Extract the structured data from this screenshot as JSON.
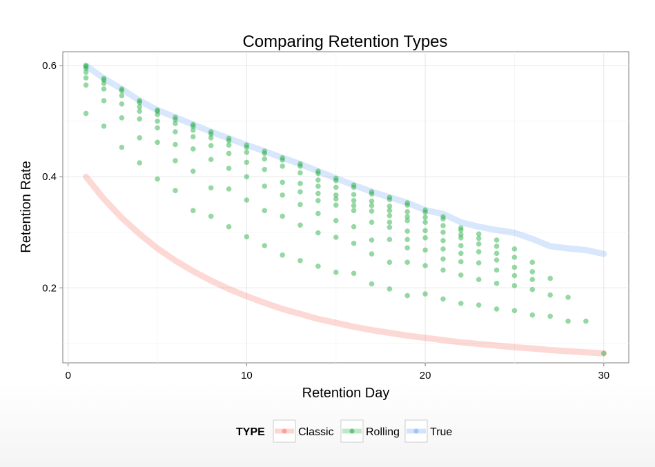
{
  "chart_data": {
    "type": "scatter",
    "title": "Comparing Retention Types",
    "xlabel": "Retention Day",
    "ylabel": "Retention Rate",
    "xlim": [
      -0.3,
      31.4
    ],
    "ylim": [
      0.065,
      0.625
    ],
    "x_ticks": [
      0,
      10,
      20,
      30
    ],
    "y_ticks": [
      0.2,
      0.4,
      0.6
    ],
    "x_tick_labels": [
      "0",
      "10",
      "20",
      "30"
    ],
    "y_tick_labels": [
      "0.2",
      "0.4",
      "0.6"
    ],
    "grid": true,
    "legend": {
      "title": "TYPE",
      "position": "bottom",
      "entries": [
        "Classic",
        "Rolling",
        "True"
      ]
    },
    "colors": {
      "Classic": "#F8766D",
      "Rolling": "#2DB24A",
      "True": "#7FAEF5"
    },
    "lines": [
      {
        "name": "True",
        "x": [
          1,
          2,
          3,
          4,
          5,
          6,
          7,
          8,
          9,
          10,
          11,
          12,
          13,
          14,
          15,
          16,
          17,
          18,
          19,
          20,
          21,
          22,
          23,
          24,
          25,
          26,
          27,
          28,
          29,
          30
        ],
        "y": [
          0.6,
          0.577,
          0.558,
          0.537,
          0.52,
          0.507,
          0.494,
          0.481,
          0.469,
          0.457,
          0.446,
          0.434,
          0.423,
          0.41,
          0.397,
          0.385,
          0.373,
          0.363,
          0.353,
          0.34,
          0.333,
          0.318,
          0.31,
          0.304,
          0.299,
          0.288,
          0.275,
          0.271,
          0.268,
          0.261
        ]
      },
      {
        "name": "Classic",
        "x": [
          1,
          2,
          3,
          4,
          5,
          6,
          7,
          8,
          9,
          10,
          11,
          12,
          13,
          14,
          15,
          16,
          17,
          18,
          19,
          20,
          21,
          22,
          23,
          24,
          25,
          26,
          27,
          28,
          29,
          30
        ],
        "y": [
          0.4,
          0.36,
          0.326,
          0.297,
          0.271,
          0.249,
          0.23,
          0.213,
          0.198,
          0.185,
          0.173,
          0.162,
          0.153,
          0.144,
          0.137,
          0.13,
          0.124,
          0.119,
          0.114,
          0.11,
          0.106,
          0.102,
          0.099,
          0.096,
          0.093,
          0.091,
          0.088,
          0.086,
          0.084,
          0.082
        ]
      }
    ],
    "rolling_points": {
      "name": "Rolling",
      "columns": [
        {
          "x": 1,
          "y": [
            0.6,
            0.598,
            0.595,
            0.588,
            0.578,
            0.565,
            0.514
          ]
        },
        {
          "x": 2,
          "y": [
            0.577,
            0.574,
            0.568,
            0.558,
            0.537,
            0.491
          ]
        },
        {
          "x": 3,
          "y": [
            0.558,
            0.555,
            0.546,
            0.531,
            0.506,
            0.453
          ]
        },
        {
          "x": 4,
          "y": [
            0.537,
            0.534,
            0.526,
            0.518,
            0.504,
            0.47,
            0.425
          ]
        },
        {
          "x": 5,
          "y": [
            0.52,
            0.518,
            0.512,
            0.5,
            0.488,
            0.462,
            0.396
          ]
        },
        {
          "x": 6,
          "y": [
            0.507,
            0.503,
            0.496,
            0.481,
            0.458,
            0.429,
            0.375
          ]
        },
        {
          "x": 7,
          "y": [
            0.494,
            0.491,
            0.484,
            0.472,
            0.45,
            0.41,
            0.339
          ]
        },
        {
          "x": 8,
          "y": [
            0.481,
            0.477,
            0.47,
            0.456,
            0.431,
            0.38,
            0.329
          ]
        },
        {
          "x": 9,
          "y": [
            0.469,
            0.465,
            0.457,
            0.442,
            0.415,
            0.378,
            0.31
          ]
        },
        {
          "x": 10,
          "y": [
            0.457,
            0.453,
            0.444,
            0.426,
            0.4,
            0.358,
            0.292
          ]
        },
        {
          "x": 11,
          "y": [
            0.446,
            0.442,
            0.432,
            0.413,
            0.383,
            0.339,
            0.276
          ]
        },
        {
          "x": 12,
          "y": [
            0.434,
            0.43,
            0.419,
            0.39,
            0.367,
            0.329,
            0.259
          ]
        },
        {
          "x": 13,
          "y": [
            0.423,
            0.419,
            0.407,
            0.388,
            0.373,
            0.35,
            0.313,
            0.249
          ]
        },
        {
          "x": 14,
          "y": [
            0.41,
            0.406,
            0.394,
            0.383,
            0.37,
            0.357,
            0.334,
            0.299,
            0.239
          ]
        },
        {
          "x": 15,
          "y": [
            0.397,
            0.393,
            0.381,
            0.367,
            0.36,
            0.349,
            0.321,
            0.291,
            0.228
          ]
        },
        {
          "x": 16,
          "y": [
            0.385,
            0.381,
            0.368,
            0.357,
            0.348,
            0.339,
            0.31,
            0.28,
            0.226
          ]
        },
        {
          "x": 17,
          "y": [
            0.373,
            0.369,
            0.356,
            0.348,
            0.338,
            0.318,
            0.286,
            0.261,
            0.207
          ]
        },
        {
          "x": 18,
          "y": [
            0.363,
            0.359,
            0.347,
            0.339,
            0.33,
            0.318,
            0.309,
            0.287,
            0.246,
            0.198
          ]
        },
        {
          "x": 19,
          "y": [
            0.353,
            0.349,
            0.337,
            0.328,
            0.321,
            0.302,
            0.287,
            0.272,
            0.246,
            0.186
          ]
        },
        {
          "x": 20,
          "y": [
            0.34,
            0.336,
            0.327,
            0.318,
            0.303,
            0.29,
            0.268,
            0.24,
            0.189
          ]
        },
        {
          "x": 21,
          "y": [
            0.328,
            0.324,
            0.312,
            0.3,
            0.285,
            0.27,
            0.252,
            0.232,
            0.18
          ]
        },
        {
          "x": 22,
          "y": [
            0.308,
            0.304,
            0.296,
            0.29,
            0.276,
            0.262,
            0.247,
            0.223,
            0.172
          ]
        },
        {
          "x": 23,
          "y": [
            0.297,
            0.289,
            0.279,
            0.265,
            0.245,
            0.215,
            0.169
          ]
        },
        {
          "x": 24,
          "y": [
            0.286,
            0.275,
            0.262,
            0.25,
            0.232,
            0.208,
            0.162
          ]
        },
        {
          "x": 25,
          "y": [
            0.27,
            0.255,
            0.237,
            0.222,
            0.204,
            0.159
          ]
        },
        {
          "x": 26,
          "y": [
            0.246,
            0.229,
            0.215,
            0.197,
            0.151
          ]
        },
        {
          "x": 27,
          "y": [
            0.217,
            0.187,
            0.149
          ]
        },
        {
          "x": 28,
          "y": [
            0.183,
            0.14
          ]
        },
        {
          "x": 29,
          "y": [
            0.14
          ]
        },
        {
          "x": 30,
          "y": [
            0.082
          ]
        }
      ]
    }
  }
}
